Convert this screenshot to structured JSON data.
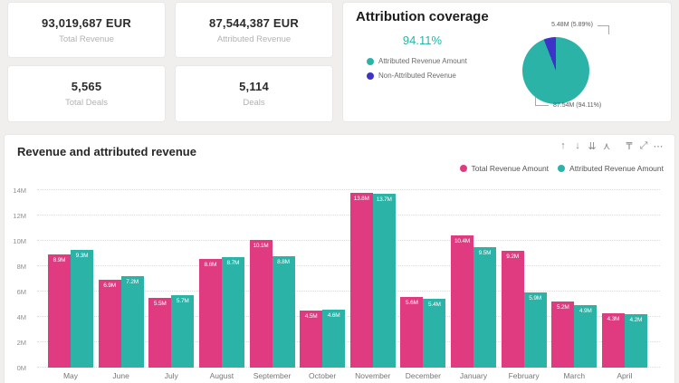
{
  "kpis": [
    {
      "value": "93,019,687 EUR",
      "label": "Total Revenue"
    },
    {
      "value": "87,544,387 EUR",
      "label": "Attributed Revenue"
    },
    {
      "value": "5,565",
      "label": "Total Deals"
    },
    {
      "value": "5,114",
      "label": "Deals"
    }
  ],
  "attribution": {
    "coverage_pct": "94.11%"
  },
  "toolbar": {
    "icons": [
      {
        "name": "drill-up-icon",
        "glyph": "↑"
      },
      {
        "name": "drill-down-icon",
        "glyph": "↓"
      },
      {
        "name": "drill-next-level-icon",
        "glyph": "⇊"
      },
      {
        "name": "expand-all-icon",
        "glyph": "⋏"
      },
      {
        "name": "filter-icon",
        "glyph": "₸",
        "gap": true
      },
      {
        "name": "focus-mode-icon",
        "glyph": "⤢"
      },
      {
        "name": "more-options-icon",
        "glyph": "⋯"
      }
    ]
  },
  "colors": {
    "pink": "#E03A80",
    "teal": "#2BB3A7",
    "blue": "#3D33C9",
    "page_bg": "#F0EFEE"
  },
  "chart_data": [
    {
      "type": "pie",
      "title": "Attribution coverage",
      "labels": [
        "Attributed Revenue Amount",
        "Non-Attributed Revenue"
      ],
      "values_m": [
        87.54,
        5.48
      ],
      "percents": [
        94.11,
        5.89
      ],
      "slice_labels": [
        "87.54M (94.11%)",
        "5.48M (5.89%)"
      ],
      "colors": [
        "#2BB3A7",
        "#3D33C9"
      ],
      "legend_position": "left"
    },
    {
      "type": "bar",
      "title": "Revenue and attributed revenue",
      "categories": [
        "May",
        "June",
        "July",
        "August",
        "September",
        "October",
        "November",
        "December",
        "January",
        "February",
        "March",
        "April"
      ],
      "series": [
        {
          "name": "Total Revenue Amount",
          "color": "#E03A80",
          "values": [
            8.9,
            6.9,
            5.5,
            8.6,
            10.1,
            4.5,
            13.8,
            5.6,
            10.4,
            9.2,
            5.2,
            4.3
          ]
        },
        {
          "name": "Attributed Revenue Amount",
          "color": "#2BB3A7",
          "values": [
            9.3,
            7.2,
            5.7,
            8.7,
            8.8,
            4.6,
            13.7,
            5.4,
            9.5,
            5.9,
            4.9,
            4.2
          ]
        }
      ],
      "value_label_suffix": "M",
      "yticks": [
        "0M",
        "2M",
        "4M",
        "6M",
        "8M",
        "10M",
        "12M",
        "14M"
      ],
      "ylim": [
        0,
        14
      ],
      "xlabel": "",
      "ylabel": "",
      "grid": "dotted-horizontal",
      "legend_position": "top-right"
    }
  ]
}
